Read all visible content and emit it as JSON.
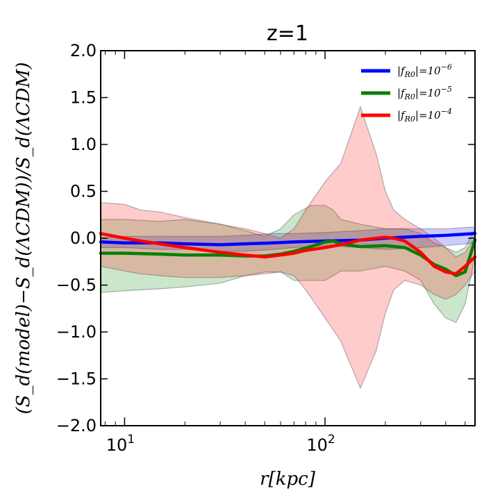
{
  "chart_data": {
    "type": "line",
    "title": "z=1",
    "xlabel": "r[kpc]",
    "ylabel": "(S_d(model)−S_d(ΛCDM))/S_d(ΛCDM)",
    "xscale": "log",
    "xlim": [
      7.6,
      560
    ],
    "ylim": [
      -2.0,
      2.0
    ],
    "yticks": [
      2.0,
      1.5,
      1.0,
      0.5,
      0.0,
      -0.5,
      -1.0,
      -1.5,
      -2.0
    ],
    "ytick_labels": [
      "2.0",
      "1.5",
      "1.0",
      "0.5",
      "0.0",
      "−0.5",
      "−1.0",
      "−1.5",
      "−2.0"
    ],
    "xticks": [
      {
        "value": 10,
        "base": "10",
        "exp": "1"
      },
      {
        "value": 100,
        "base": "10",
        "exp": "2"
      }
    ],
    "legend_position": "top-right",
    "series": [
      {
        "name": "|f_R0|=10^-6",
        "legend_main": "|f",
        "legend_sub": "R0",
        "legend_eq": "|=10",
        "legend_exp": "−6",
        "color": "#0000ff",
        "x": [
          7.6,
          10,
          15,
          20,
          30,
          40,
          55,
          70,
          100,
          150,
          200,
          300,
          400,
          560
        ],
        "y": [
          -0.04,
          -0.05,
          -0.05,
          -0.06,
          -0.07,
          -0.06,
          -0.05,
          -0.04,
          -0.03,
          -0.02,
          0.0,
          0.02,
          0.03,
          0.05
        ],
        "band_upper": [
          0.0,
          0.02,
          0.02,
          0.02,
          0.02,
          0.03,
          0.05,
          0.05,
          0.06,
          0.08,
          0.1,
          0.1,
          0.1,
          0.12
        ],
        "band_lower": [
          -0.1,
          -0.1,
          -0.12,
          -0.12,
          -0.14,
          -0.14,
          -0.12,
          -0.1,
          -0.08,
          -0.1,
          -0.12,
          -0.1,
          -0.08,
          -0.05
        ]
      },
      {
        "name": "|f_R0|=10^-5",
        "legend_main": "|f",
        "legend_sub": "R0",
        "legend_eq": "|=10",
        "legend_exp": "−5",
        "color": "#008000",
        "x": [
          7.6,
          10,
          15,
          20,
          30,
          40,
          50,
          60,
          70,
          85,
          100,
          110,
          120,
          150,
          200,
          250,
          300,
          350,
          400,
          450,
          500,
          560
        ],
        "y": [
          -0.16,
          -0.16,
          -0.17,
          -0.18,
          -0.18,
          -0.19,
          -0.19,
          -0.17,
          -0.14,
          -0.09,
          -0.04,
          -0.03,
          -0.06,
          -0.09,
          -0.08,
          -0.1,
          -0.18,
          -0.28,
          -0.33,
          -0.4,
          -0.36,
          -0.02
        ],
        "band_upper": [
          0.2,
          0.2,
          0.18,
          0.2,
          0.15,
          0.08,
          0.02,
          0.1,
          0.25,
          0.35,
          0.35,
          0.3,
          0.2,
          0.15,
          0.1,
          0.1,
          0.05,
          -0.05,
          -0.1,
          -0.15,
          -0.1,
          0.1
        ],
        "band_lower": [
          -0.58,
          -0.56,
          -0.54,
          -0.52,
          -0.48,
          -0.4,
          -0.36,
          -0.36,
          -0.45,
          -0.45,
          -0.45,
          -0.4,
          -0.35,
          -0.35,
          -0.3,
          -0.35,
          -0.45,
          -0.7,
          -0.85,
          -0.9,
          -0.7,
          -0.2
        ]
      },
      {
        "name": "|f_R0|=10^-4",
        "legend_main": "|f",
        "legend_sub": "R0",
        "legend_eq": "|=10",
        "legend_exp": "−4",
        "color": "#ff0000",
        "x": [
          7.6,
          10,
          12,
          15,
          20,
          30,
          40,
          50,
          60,
          70,
          80,
          100,
          120,
          150,
          180,
          200,
          220,
          250,
          300,
          350,
          400,
          450,
          500,
          560
        ],
        "y": [
          0.05,
          0.0,
          -0.03,
          -0.06,
          -0.1,
          -0.15,
          -0.18,
          -0.2,
          -0.18,
          -0.16,
          -0.13,
          -0.1,
          -0.07,
          -0.02,
          0.0,
          0.01,
          0.0,
          -0.03,
          -0.15,
          -0.3,
          -0.36,
          -0.38,
          -0.3,
          -0.2
        ],
        "band_upper": [
          0.38,
          0.36,
          0.3,
          0.28,
          0.22,
          0.15,
          0.1,
          0.05,
          0.0,
          0.1,
          0.3,
          0.6,
          0.8,
          1.4,
          0.9,
          0.5,
          0.3,
          0.2,
          0.1,
          0.0,
          -0.1,
          -0.2,
          -0.15,
          0.0
        ],
        "band_lower": [
          -0.3,
          -0.35,
          -0.38,
          -0.4,
          -0.42,
          -0.42,
          -0.4,
          -0.38,
          -0.36,
          -0.4,
          -0.55,
          -0.85,
          -1.1,
          -1.6,
          -1.2,
          -0.8,
          -0.55,
          -0.45,
          -0.5,
          -0.6,
          -0.65,
          -0.6,
          -0.5,
          -0.35
        ]
      }
    ]
  }
}
